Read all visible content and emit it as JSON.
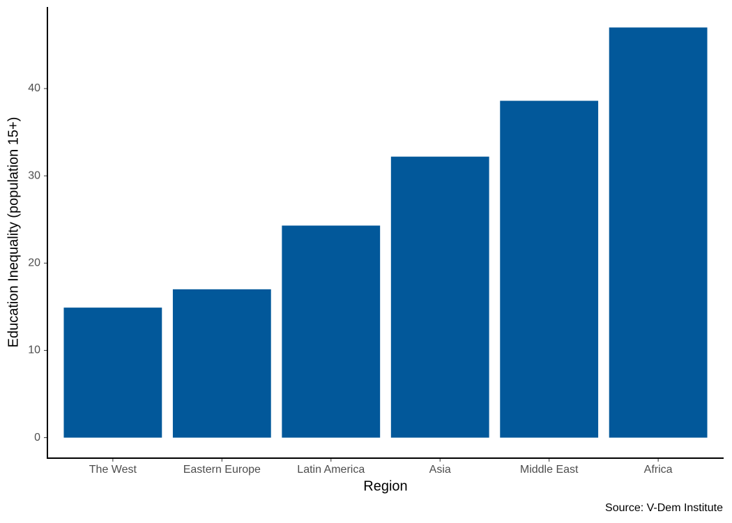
{
  "chart_data": {
    "type": "bar",
    "x_label": "Region",
    "y_label": "Education Inequality (population 15+)",
    "caption": "Source: V-Dem Institute",
    "categories": [
      "The West",
      "Eastern Europe",
      "Latin America",
      "Asia",
      "Middle East",
      "Africa"
    ],
    "values": [
      14.9,
      17.0,
      24.3,
      32.2,
      38.6,
      47.0
    ],
    "color": "#02589a",
    "ylim": [
      -2.35,
      49.35
    ],
    "yticks": [
      0,
      10,
      20,
      30,
      40
    ],
    "grid": false
  }
}
